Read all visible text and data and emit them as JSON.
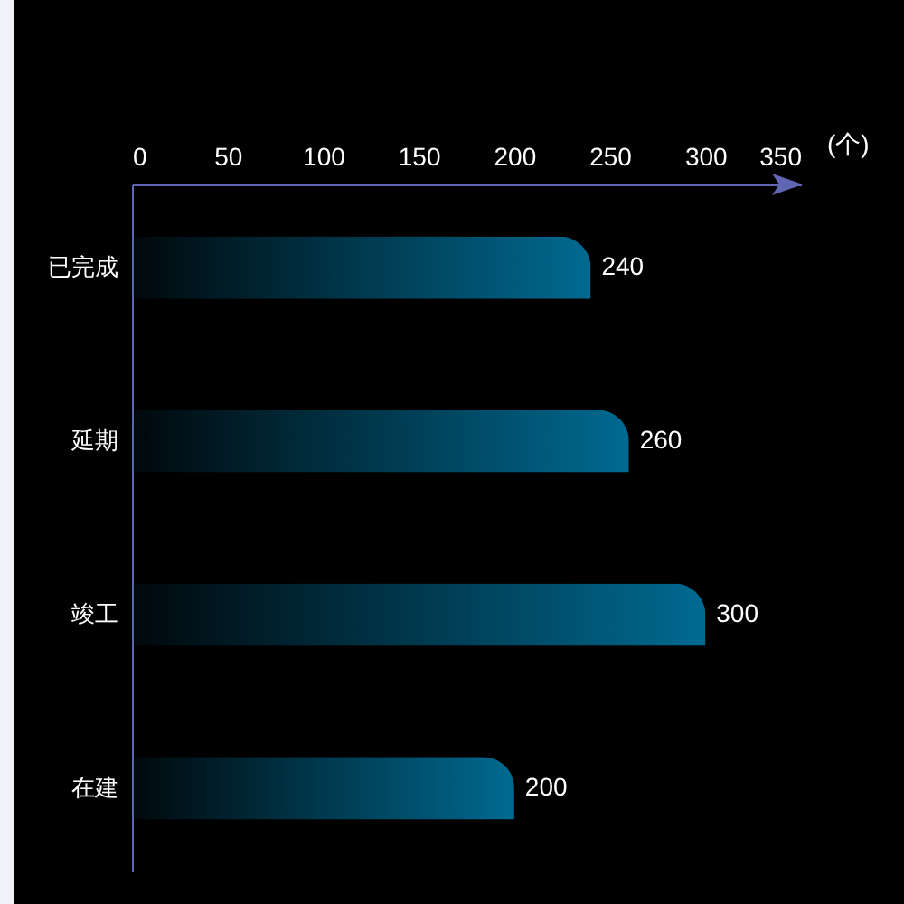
{
  "chart_data": {
    "type": "bar",
    "orientation": "horizontal",
    "categories": [
      "已完成",
      "延期",
      "竣工",
      "在建"
    ],
    "values": [
      240,
      260,
      300,
      200
    ],
    "color": "#006a91",
    "xlabel": "(个)",
    "xlim": [
      0,
      350
    ],
    "xticks": [
      0,
      50,
      100,
      150,
      200,
      250,
      300,
      350
    ],
    "data_labels": true
  }
}
